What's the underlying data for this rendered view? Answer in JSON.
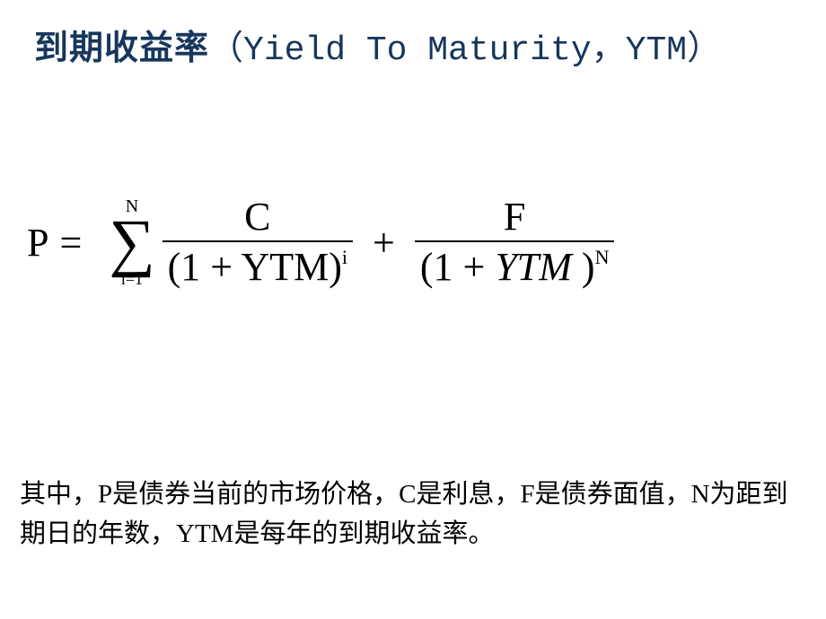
{
  "title": {
    "chinese": "到期收益率",
    "english": "（Yield To Maturity，YTM）"
  },
  "formula": {
    "lhs": "P",
    "equals": "=",
    "sigma": {
      "upper": "N",
      "symbol": "∑",
      "lower": "i=1"
    },
    "term1": {
      "numerator": "C",
      "denominator_base": "(1 + YTM)",
      "denominator_exp": "i"
    },
    "plus": "+",
    "term2": {
      "numerator": "F",
      "denominator_pre": "(1 + ",
      "denominator_ytm": "YTM",
      "denominator_post": " )",
      "denominator_exp": "N"
    }
  },
  "description": "其中，P是债券当前的市场价格，C是利息，F是债券面值，N为距到期日的年数，YTM是每年的到期收益率。",
  "colors": {
    "title_color": "#17365c",
    "text_color": "#000000",
    "background": "#ffffff"
  },
  "fonts": {
    "title_size": 38,
    "formula_size": 44,
    "description_size": 29
  }
}
